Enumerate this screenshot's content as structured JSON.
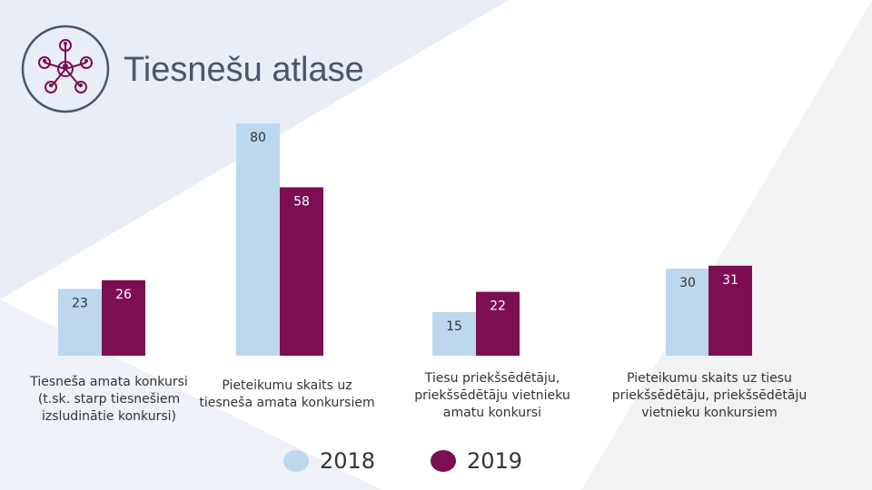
{
  "title": "Tiesnešu atlase",
  "colors": {
    "s2018": "#bdd7ee",
    "s2019": "#7b0f52"
  },
  "chart_data": {
    "type": "bar",
    "title": "Tiesnešu atlase",
    "categories": [
      "Tiesneša amata konkursi (t.sk. starp tiesnešiem izsludinātie konkursi)",
      "Pieteikumu skaits uz tiesneša amata konkursiem",
      "Tiesu priekšsēdētāju, priekšsēdētāju vietnieku amatu konkursi",
      "Pieteikumu skaits uz tiesu priekšsēdētāju, priekšsēdētāju vietnieku konkursiem"
    ],
    "series": [
      {
        "name": "2018",
        "values": [
          23,
          80,
          15,
          30
        ]
      },
      {
        "name": "2019",
        "values": [
          26,
          58,
          22,
          31
        ]
      }
    ],
    "xlabel": "",
    "ylabel": "",
    "legend": "bottom"
  },
  "labels": {
    "cat1": "Tiesneša amata konkursi (t.sk. starp tiesnešiem izsludinātie konkursi)",
    "cat2": "Pieteikumu skaits uz tiesneša amata konkursiem",
    "cat3": "Tiesu priekšsēdētāju, priekšsēdētāju vietnieku amatu konkursi",
    "cat4": "Pieteikumu skaits uz tiesu priekšsēdētāju, priekšsēdētāju vietnieku konkursiem"
  },
  "legend": {
    "s2018": "2018",
    "s2019": "2019"
  },
  "icons": {
    "logo": "network-people-icon"
  }
}
